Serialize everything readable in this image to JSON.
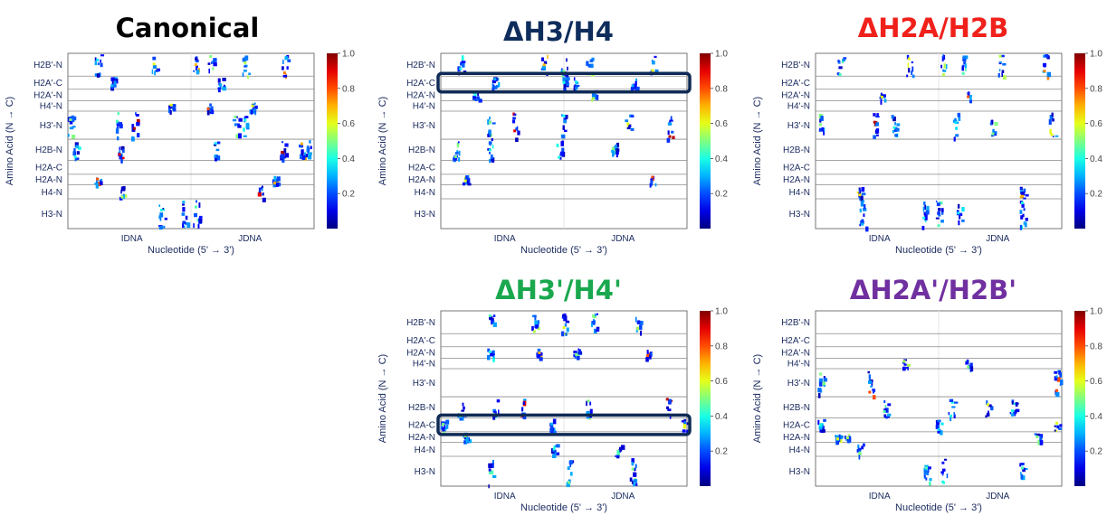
{
  "colors": {
    "label": "#1a2a5e",
    "grid": "#9a9a9a",
    "highlight_box": "#0e2a55"
  },
  "chart_data": [
    {
      "type": "heatmap",
      "title": "Canonical",
      "title_color": "#000000",
      "xlabel": "Nucleotide (5' → 3')",
      "ylabel": "Amino Acid (N → C)",
      "xticklabels": [
        "IDNA",
        "JDNA"
      ],
      "rows": [
        "H2B'-N",
        "H2A'-C",
        "H2A'-N",
        "H4'-N",
        "H3'-N",
        "H2B-N",
        "H2A-C",
        "H2A-N",
        "H4-N",
        "H3-N"
      ],
      "colorbar": {
        "range": [
          0,
          1
        ],
        "ticks": [
          "0.2",
          "0.4",
          "0.6",
          "0.8",
          "1.0"
        ]
      },
      "highlight_rows": [],
      "clusters": [
        [
          0.12,
          0,
          0.35
        ],
        [
          0.35,
          0,
          0.6
        ],
        [
          0.52,
          0,
          0.7
        ],
        [
          0.58,
          0,
          0.5
        ],
        [
          0.72,
          0,
          0.55
        ],
        [
          0.88,
          0,
          0.75
        ],
        [
          0.18,
          1,
          0.3
        ],
        [
          0.62,
          1,
          0.3
        ],
        [
          0.42,
          3,
          0.6
        ],
        [
          0.57,
          3,
          0.8
        ],
        [
          0.75,
          3,
          0.6
        ],
        [
          0.2,
          4,
          0.45
        ],
        [
          0.27,
          4,
          0.95
        ],
        [
          0.68,
          4,
          0.5
        ],
        [
          0.72,
          4,
          0.4
        ],
        [
          0.01,
          4,
          0.5
        ],
        [
          0.03,
          5,
          0.4
        ],
        [
          0.21,
          5,
          0.9
        ],
        [
          0.6,
          5,
          0.35
        ],
        [
          0.87,
          5,
          0.95
        ],
        [
          0.95,
          5,
          0.7
        ],
        [
          0.98,
          5,
          0.3
        ],
        [
          0.12,
          7,
          0.8
        ],
        [
          0.84,
          7,
          0.7
        ],
        [
          0.22,
          8,
          0.55
        ],
        [
          0.78,
          8,
          0.9
        ],
        [
          0.38,
          9,
          0.4
        ],
        [
          0.47,
          9,
          0.3
        ],
        [
          0.52,
          9,
          0.45
        ]
      ]
    },
    {
      "type": "heatmap",
      "title": "ΔH3/H4",
      "title_color": "#0f2d5c",
      "xlabel": "Nucleotide (5' → 3')",
      "ylabel": "Amino Acid (N → C)",
      "xticklabels": [
        "IDNA",
        "JDNA"
      ],
      "rows": [
        "H2B'-N",
        "H2A'-C",
        "H2A'-N",
        "H4'-N",
        "H3'-N",
        "H2B-N",
        "H2A-C",
        "H2A-N",
        "H4-N",
        "H3-N"
      ],
      "colorbar": {
        "range": [
          0,
          1
        ],
        "ticks": [
          "0.2",
          "0.4",
          "0.6",
          "0.8",
          "1.0"
        ]
      },
      "highlight_rows": [
        1
      ],
      "clusters": [
        [
          0.08,
          0,
          0.4
        ],
        [
          0.42,
          0,
          0.7
        ],
        [
          0.5,
          0,
          0.5
        ],
        [
          0.6,
          0,
          0.55
        ],
        [
          0.86,
          0,
          0.6
        ],
        [
          0.22,
          1,
          0.3
        ],
        [
          0.5,
          1,
          0.4
        ],
        [
          0.55,
          1,
          0.35
        ],
        [
          0.78,
          1,
          0.3
        ],
        [
          0.14,
          2,
          0.4
        ],
        [
          0.62,
          2,
          0.55
        ],
        [
          0.2,
          4,
          0.5
        ],
        [
          0.3,
          4,
          0.9
        ],
        [
          0.5,
          4,
          0.4
        ],
        [
          0.76,
          4,
          0.6
        ],
        [
          0.93,
          4,
          0.95
        ],
        [
          0.06,
          5,
          0.5
        ],
        [
          0.2,
          5,
          0.4
        ],
        [
          0.48,
          5,
          0.4
        ],
        [
          0.7,
          5,
          0.5
        ],
        [
          0.1,
          7,
          0.6
        ],
        [
          0.86,
          7,
          0.8
        ]
      ]
    },
    {
      "type": "heatmap",
      "title": "ΔH2A/H2B",
      "title_color": "#f0201b",
      "xlabel": "Nucleotide (5' → 3')",
      "ylabel": "Amino Acid (N → C)",
      "xticklabels": [
        "IDNA",
        "JDNA"
      ],
      "rows": [
        "H2B'-N",
        "H2A'-C",
        "H2A'-N",
        "H4'-N",
        "H3'-N",
        "H2B-N",
        "H2A-C",
        "H2A-N",
        "H4-N",
        "H3-N"
      ],
      "colorbar": {
        "range": [
          0,
          1
        ],
        "ticks": [
          "0.2",
          "0.4",
          "0.6",
          "0.8",
          "1.0"
        ]
      },
      "highlight_rows": [],
      "clusters": [
        [
          0.1,
          0,
          0.45
        ],
        [
          0.38,
          0,
          0.6
        ],
        [
          0.52,
          0,
          0.55
        ],
        [
          0.6,
          0,
          0.45
        ],
        [
          0.75,
          0,
          0.55
        ],
        [
          0.93,
          0,
          0.75
        ],
        [
          0.27,
          2,
          0.6
        ],
        [
          0.62,
          2,
          0.8
        ],
        [
          0.02,
          4,
          0.5
        ],
        [
          0.24,
          4,
          0.95
        ],
        [
          0.32,
          4,
          0.4
        ],
        [
          0.57,
          4,
          0.35
        ],
        [
          0.72,
          4,
          0.5
        ],
        [
          0.96,
          4,
          0.6
        ],
        [
          0.18,
          8,
          0.65
        ],
        [
          0.84,
          8,
          0.7
        ],
        [
          0.19,
          9,
          0.3
        ],
        [
          0.44,
          9,
          0.4
        ],
        [
          0.5,
          9,
          0.45
        ],
        [
          0.58,
          9,
          0.35
        ],
        [
          0.84,
          9,
          0.4
        ]
      ]
    },
    {
      "type": "heatmap",
      "title": "ΔH3'/H4'",
      "title_color": "#1aa84e",
      "xlabel": "Nucleotide (5' → 3')",
      "ylabel": "Amino Acid (N → C)",
      "xticklabels": [
        "IDNA",
        "JDNA"
      ],
      "rows": [
        "H2B'-N",
        "H2A'-C",
        "H2A'-N",
        "H4'-N",
        "H3'-N",
        "H2B-N",
        "H2A-C",
        "H2A-N",
        "H4-N",
        "H3-N"
      ],
      "colorbar": {
        "range": [
          0,
          1
        ],
        "ticks": [
          "0.2",
          "0.4",
          "0.6",
          "0.8",
          "1.0"
        ]
      },
      "highlight_rows": [
        6
      ],
      "clusters": [
        [
          0.2,
          0,
          0.45
        ],
        [
          0.38,
          0,
          0.55
        ],
        [
          0.5,
          0,
          0.6
        ],
        [
          0.62,
          0,
          0.5
        ],
        [
          0.8,
          0,
          0.55
        ],
        [
          0.2,
          2,
          0.4
        ],
        [
          0.4,
          2,
          0.7
        ],
        [
          0.55,
          2,
          0.5
        ],
        [
          0.84,
          2,
          0.8
        ],
        [
          0.08,
          5,
          0.5
        ],
        [
          0.22,
          5,
          0.45
        ],
        [
          0.33,
          5,
          0.9
        ],
        [
          0.6,
          5,
          0.5
        ],
        [
          0.92,
          5,
          0.95
        ],
        [
          0.01,
          6,
          0.5
        ],
        [
          0.99,
          6,
          0.6
        ],
        [
          0.45,
          6,
          0.3
        ],
        [
          0.1,
          7,
          0.55
        ],
        [
          0.46,
          8,
          0.4
        ],
        [
          0.72,
          8,
          0.45
        ],
        [
          0.2,
          9,
          0.45
        ],
        [
          0.52,
          9,
          0.5
        ],
        [
          0.78,
          9,
          0.5
        ]
      ]
    },
    {
      "type": "heatmap",
      "title": "ΔH2A'/H2B'",
      "title_color": "#7030a0",
      "xlabel": "Nucleotide (5' → 3')",
      "ylabel": "Amino Acid (N → C)",
      "xticklabels": [
        "IDNA",
        "JDNA"
      ],
      "rows": [
        "H2B'-N",
        "H2A'-C",
        "H2A'-N",
        "H4'-N",
        "H3'-N",
        "H2B-N",
        "H2A-C",
        "H2A-N",
        "H4-N",
        "H3-N"
      ],
      "colorbar": {
        "range": [
          0,
          1
        ],
        "ticks": [
          "0.2",
          "0.4",
          "0.6",
          "0.8",
          "1.0"
        ]
      },
      "highlight_rows": [],
      "clusters": [
        [
          0.36,
          3,
          0.55
        ],
        [
          0.62,
          3,
          0.5
        ],
        [
          0.02,
          4,
          0.5
        ],
        [
          0.22,
          4,
          0.8
        ],
        [
          0.28,
          5,
          0.45
        ],
        [
          0.55,
          5,
          0.4
        ],
        [
          0.7,
          5,
          0.6
        ],
        [
          0.8,
          5,
          0.4
        ],
        [
          0.98,
          4,
          0.8
        ],
        [
          0.02,
          6,
          0.4
        ],
        [
          0.5,
          6,
          0.35
        ],
        [
          0.98,
          6,
          0.6
        ],
        [
          0.09,
          7,
          0.6
        ],
        [
          0.13,
          7,
          0.55
        ],
        [
          0.9,
          7,
          0.5
        ],
        [
          0.18,
          8,
          0.5
        ],
        [
          0.45,
          9,
          0.45
        ],
        [
          0.52,
          9,
          0.4
        ],
        [
          0.84,
          9,
          0.45
        ]
      ]
    }
  ]
}
